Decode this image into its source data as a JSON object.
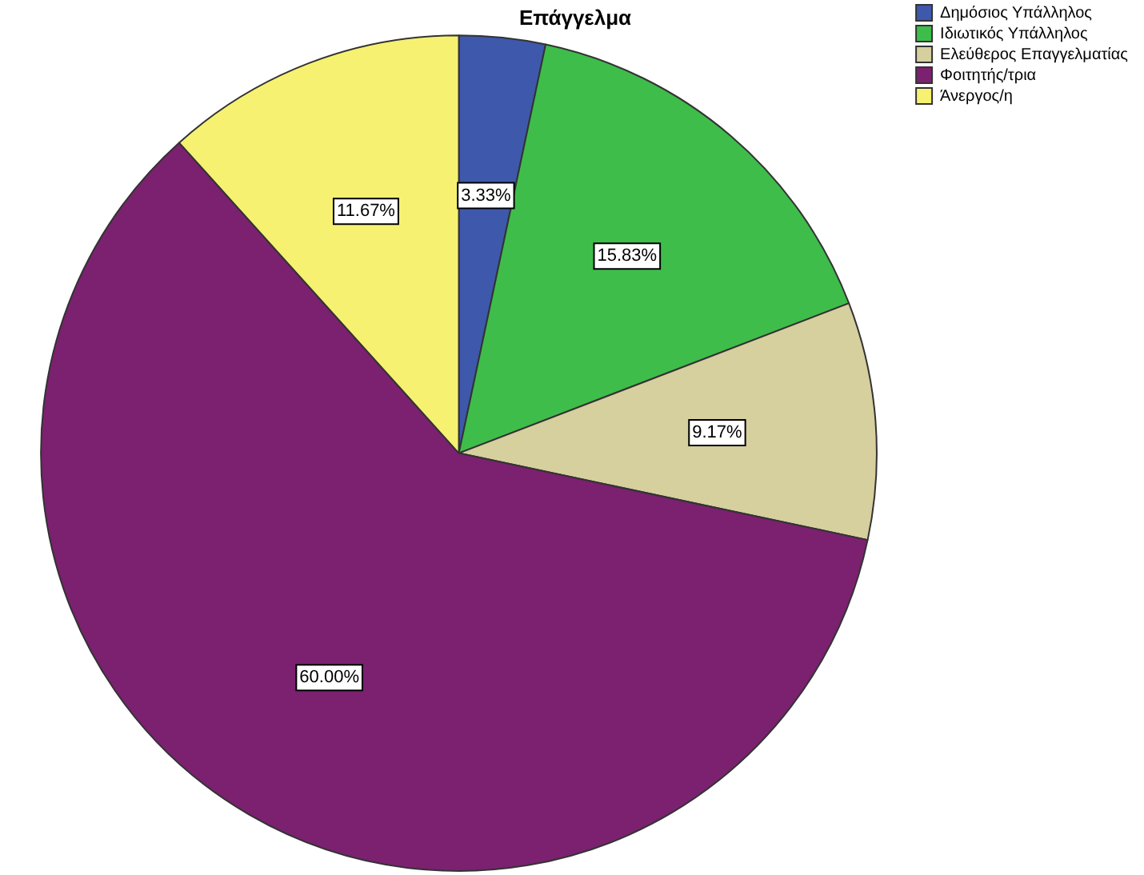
{
  "chart_data": {
    "type": "pie",
    "title": "Επάγγελμα",
    "categories": [
      "Δημόσιος Υπάλληλος",
      "Ιδιωτικός Υπάλληλος",
      "Ελεύθερος Επαγγελματίας",
      "Φοιτητής/τρια",
      "Άνεργος/η"
    ],
    "values": [
      3.33,
      15.83,
      9.17,
      60.0,
      11.67
    ],
    "value_labels": [
      "3.33%",
      "15.83%",
      "9.17%",
      "60.00%",
      "11.67%"
    ],
    "colors": [
      "#3e58ac",
      "#3ebd4a",
      "#d6cf9e",
      "#7b2170",
      "#f6f171"
    ],
    "legend": "top right"
  }
}
